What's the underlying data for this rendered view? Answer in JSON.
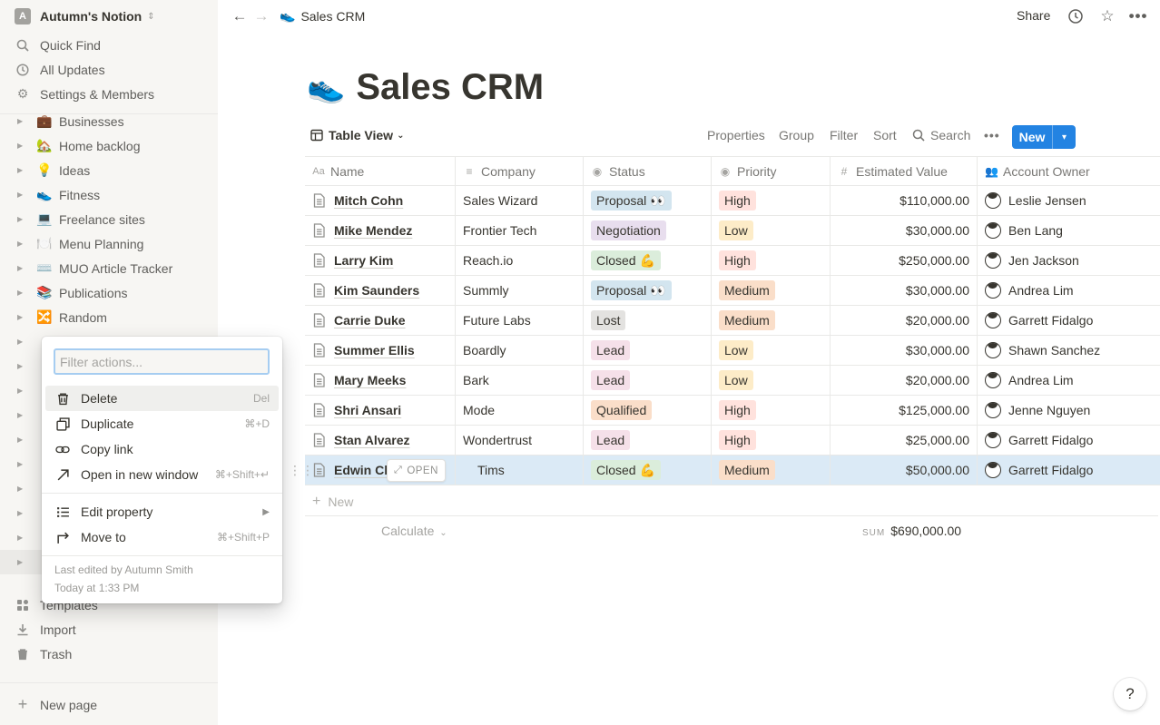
{
  "workspace": {
    "avatar_letter": "A",
    "name": "Autumn's Notion"
  },
  "sidebar_top": [
    {
      "label": "Quick Find",
      "icon": "search-icon"
    },
    {
      "label": "All Updates",
      "icon": "clock-icon"
    },
    {
      "label": "Settings & Members",
      "icon": "gear-icon"
    }
  ],
  "pages": [
    {
      "emoji": "💼",
      "label": "Businesses"
    },
    {
      "emoji": "🏡",
      "label": "Home backlog"
    },
    {
      "emoji": "💡",
      "label": "Ideas"
    },
    {
      "emoji": "👟",
      "label": "Fitness"
    },
    {
      "emoji": "💻",
      "label": "Freelance sites"
    },
    {
      "emoji": "🍽️",
      "label": "Menu Planning"
    },
    {
      "emoji": "⌨️",
      "label": "MUO Article Tracker"
    },
    {
      "emoji": "📚",
      "label": "Publications"
    },
    {
      "emoji": "🔀",
      "label": "Random"
    }
  ],
  "sidebar_bottom": [
    {
      "label": "Templates",
      "icon": "templates-icon"
    },
    {
      "label": "Import",
      "icon": "import-icon"
    },
    {
      "label": "Trash",
      "icon": "trash-icon"
    }
  ],
  "new_page": "New page",
  "topbar": {
    "breadcrumb_emoji": "👟",
    "breadcrumb": "Sales CRM",
    "share": "Share"
  },
  "page": {
    "emoji": "👟",
    "title": "Sales CRM"
  },
  "view": {
    "name": "Table View",
    "links": [
      "Properties",
      "Group",
      "Filter",
      "Sort",
      "Search"
    ],
    "new_label": "New"
  },
  "table": {
    "headers": [
      "Name",
      "Company",
      "Status",
      "Priority",
      "Estimated Value",
      "Account Owner"
    ],
    "rows": [
      {
        "name": "Mitch Cohn",
        "company": "Sales Wizard",
        "status": "Proposal 👀",
        "priority": "High",
        "value": "$110,000.00",
        "owner": "Leslie Jensen"
      },
      {
        "name": "Mike Mendez",
        "company": "Frontier Tech",
        "status": "Negotiation",
        "priority": "Low",
        "value": "$30,000.00",
        "owner": "Ben Lang"
      },
      {
        "name": "Larry Kim",
        "company": "Reach.io",
        "status": "Closed 💪",
        "priority": "High",
        "value": "$250,000.00",
        "owner": "Jen Jackson"
      },
      {
        "name": "Kim Saunders",
        "company": "Summly",
        "status": "Proposal 👀",
        "priority": "Medium",
        "value": "$30,000.00",
        "owner": "Andrea Lim"
      },
      {
        "name": "Carrie Duke",
        "company": "Future Labs",
        "status": "Lost",
        "priority": "Medium",
        "value": "$20,000.00",
        "owner": "Garrett Fidalgo"
      },
      {
        "name": "Summer Ellis",
        "company": "Boardly",
        "status": "Lead",
        "priority": "Low",
        "value": "$30,000.00",
        "owner": "Shawn Sanchez"
      },
      {
        "name": "Mary Meeks",
        "company": "Bark",
        "status": "Lead",
        "priority": "Low",
        "value": "$20,000.00",
        "owner": "Andrea Lim"
      },
      {
        "name": "Shri Ansari",
        "company": "Mode",
        "status": "Qualified",
        "priority": "High",
        "value": "$125,000.00",
        "owner": "Jenne Nguyen"
      },
      {
        "name": "Stan Alvarez",
        "company": "Wondertrust",
        "status": "Lead",
        "priority": "High",
        "value": "$25,000.00",
        "owner": "Garrett Fidalgo"
      },
      {
        "name": "Edwin Ch",
        "company": "Tims",
        "status": "Closed 💪",
        "priority": "Medium",
        "value": "$50,000.00",
        "owner": "Garrett Fidalgo"
      }
    ],
    "open_label": "OPEN",
    "add_row": "New",
    "calculate": "Calculate",
    "sum_label": "SUM",
    "sum_value": "$690,000.00"
  },
  "status_colors": {
    "Proposal 👀": "#d3e5ef",
    "Negotiation": "#e8deee",
    "Closed 💪": "#dbeddb",
    "Lost": "#e3e2e0",
    "Lead": "#f5e0e9",
    "Qualified": "#fadec9"
  },
  "priority_colors": {
    "High": "#ffe2dd",
    "Low": "#fdecc8",
    "Medium": "#fadec9"
  },
  "menu": {
    "filter_placeholder": "Filter actions...",
    "items": [
      {
        "label": "Delete",
        "shortcut": "Del",
        "icon": "trash-icon"
      },
      {
        "label": "Duplicate",
        "shortcut": "⌘+D",
        "icon": "duplicate-icon"
      },
      {
        "label": "Copy link",
        "shortcut": "",
        "icon": "link-icon"
      },
      {
        "label": "Open in new window",
        "shortcut": "⌘+Shift+↵",
        "icon": "open-window-icon"
      },
      {
        "label": "Edit property",
        "shortcut": "▶",
        "icon": "list-icon"
      },
      {
        "label": "Move to",
        "shortcut": "⌘+Shift+P",
        "icon": "move-icon"
      }
    ],
    "last_edited": "Last edited by Autumn Smith",
    "edited_time": "Today at 1:33 PM"
  },
  "help": "?"
}
